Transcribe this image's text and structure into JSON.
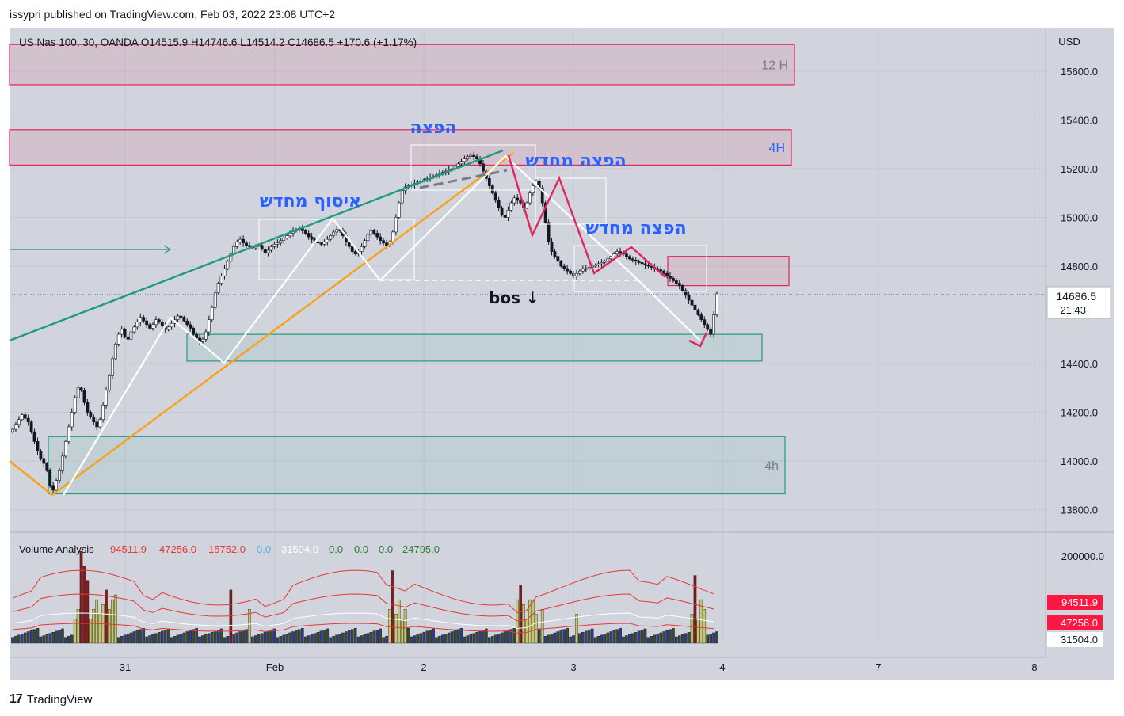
{
  "header": {
    "published": "issypri published on TradingView.com, Feb 03, 2022 23:08 UTC+2",
    "legend": "US Nas 100, 30, OANDA  O14515.9  H14746.6  L14514.2  C14686.5  +170.6 (+1.17%)"
  },
  "footer": {
    "brand": "TradingView"
  },
  "colors": {
    "background": "#d1d4dc",
    "grid": "#c5c9d2",
    "candle_up": "#ffffff",
    "candle_down": "#131722",
    "zone_red": "#e0265a",
    "zone_green": "#1e9b80",
    "trend_green": "#1e9b80",
    "trend_orange": "#f7a21b",
    "zigzag_pink": "#e0265a",
    "label_blue": "#2962ff",
    "price_line": "#3b3bb0"
  },
  "chart_data": [
    {
      "type": "candlestick",
      "currency": "USD",
      "ylim": [
        13700,
        15750
      ],
      "y_ticks": [
        "15600.0",
        "15400.0",
        "15200.0",
        "15000.0",
        "14800.0",
        "14400.0",
        "14200.0",
        "14000.0",
        "13800.0"
      ],
      "x_ticks": [
        "31",
        "Feb",
        "2",
        "3",
        "4",
        "7",
        "8"
      ],
      "last_price": "14686.5",
      "countdown": "21:43",
      "zones": [
        {
          "label": "12 H",
          "low": 15545,
          "high": 15710,
          "color": "red"
        },
        {
          "label": "4H",
          "low": 15215,
          "high": 15360,
          "color": "red"
        },
        {
          "label": "",
          "low": 14720,
          "high": 14840,
          "color": "red"
        },
        {
          "label": "",
          "low": 14410,
          "high": 14520,
          "color": "green"
        },
        {
          "label": "4h",
          "low": 13865,
          "high": 14100,
          "color": "green"
        }
      ],
      "annotations": [
        {
          "text": "הפצה",
          "price": 15390
        },
        {
          "text": "הפצה מחדש",
          "price": 15230
        },
        {
          "text": "איסוף מחדש",
          "price": 15065
        },
        {
          "text": "הפצה מחדש",
          "price": 14955
        },
        {
          "text": "bos ↓",
          "price": 14690
        }
      ],
      "closes": [
        14130,
        14150,
        14170,
        14190,
        14175,
        14160,
        14120,
        14080,
        14040,
        14010,
        13990,
        13960,
        13900,
        13880,
        13920,
        13960,
        14020,
        14080,
        14140,
        14200,
        14260,
        14300,
        14290,
        14240,
        14200,
        14180,
        14160,
        14140,
        14170,
        14230,
        14290,
        14350,
        14420,
        14480,
        14520,
        14540,
        14510,
        14500,
        14530,
        14550,
        14570,
        14590,
        14575,
        14560,
        14545,
        14560,
        14580,
        14570,
        14555,
        14540,
        14550,
        14565,
        14580,
        14595,
        14590,
        14575,
        14560,
        14545,
        14520,
        14505,
        14490,
        14500,
        14530,
        14580,
        14630,
        14690,
        14730,
        14760,
        14790,
        14820,
        14850,
        14880,
        14900,
        14910,
        14895,
        14885,
        14880,
        14875,
        14880,
        14885,
        14870,
        14855,
        14865,
        14880,
        14890,
        14895,
        14905,
        14915,
        14925,
        14935,
        14945,
        14950,
        14955,
        14945,
        14935,
        14920,
        14910,
        14900,
        14895,
        14890,
        14900,
        14910,
        14925,
        14940,
        14950,
        14945,
        14925,
        14900,
        14880,
        14860,
        14850,
        14860,
        14880,
        14905,
        14930,
        14945,
        14935,
        14920,
        14905,
        14895,
        14885,
        14900,
        14940,
        15000,
        15060,
        15110,
        15125,
        15130,
        15135,
        15140,
        15145,
        15150,
        15155,
        15160,
        15165,
        15170,
        15175,
        15180,
        15185,
        15190,
        15195,
        15200,
        15210,
        15220,
        15230,
        15240,
        15250,
        15255,
        15250,
        15240,
        15220,
        15190,
        15160,
        15130,
        15100,
        15070,
        15040,
        15010,
        15000,
        15030,
        15060,
        15080,
        15070,
        15060,
        15040,
        15060,
        15100,
        15130,
        15150,
        15120,
        15060,
        14980,
        14900,
        14860,
        14840,
        14820,
        14800,
        14790,
        14780,
        14770,
        14760,
        14770,
        14780,
        14790,
        14790,
        14795,
        14800,
        14805,
        14810,
        14815,
        14820,
        14830,
        14840,
        14850,
        14860,
        14855,
        14850,
        14840,
        14830,
        14825,
        14820,
        14815,
        14810,
        14805,
        14800,
        14795,
        14790,
        14785,
        14780,
        14770,
        14760,
        14750,
        14740,
        14730,
        14720,
        14700,
        14680,
        14660,
        14640,
        14620,
        14600,
        14580,
        14560,
        14540,
        14520,
        14600,
        14686.5
      ]
    },
    {
      "type": "bar",
      "name": "Volume Analysis",
      "values_header": [
        "94511.9",
        "47256.0",
        "15752.0",
        "0.0",
        "31504.0",
        "0.0",
        "0.0",
        "0.0",
        "24795.0"
      ],
      "y_ticks": [
        "200000.0"
      ],
      "price_labels": [
        "94511.9",
        "47256.0",
        "31504.0"
      ]
    }
  ]
}
